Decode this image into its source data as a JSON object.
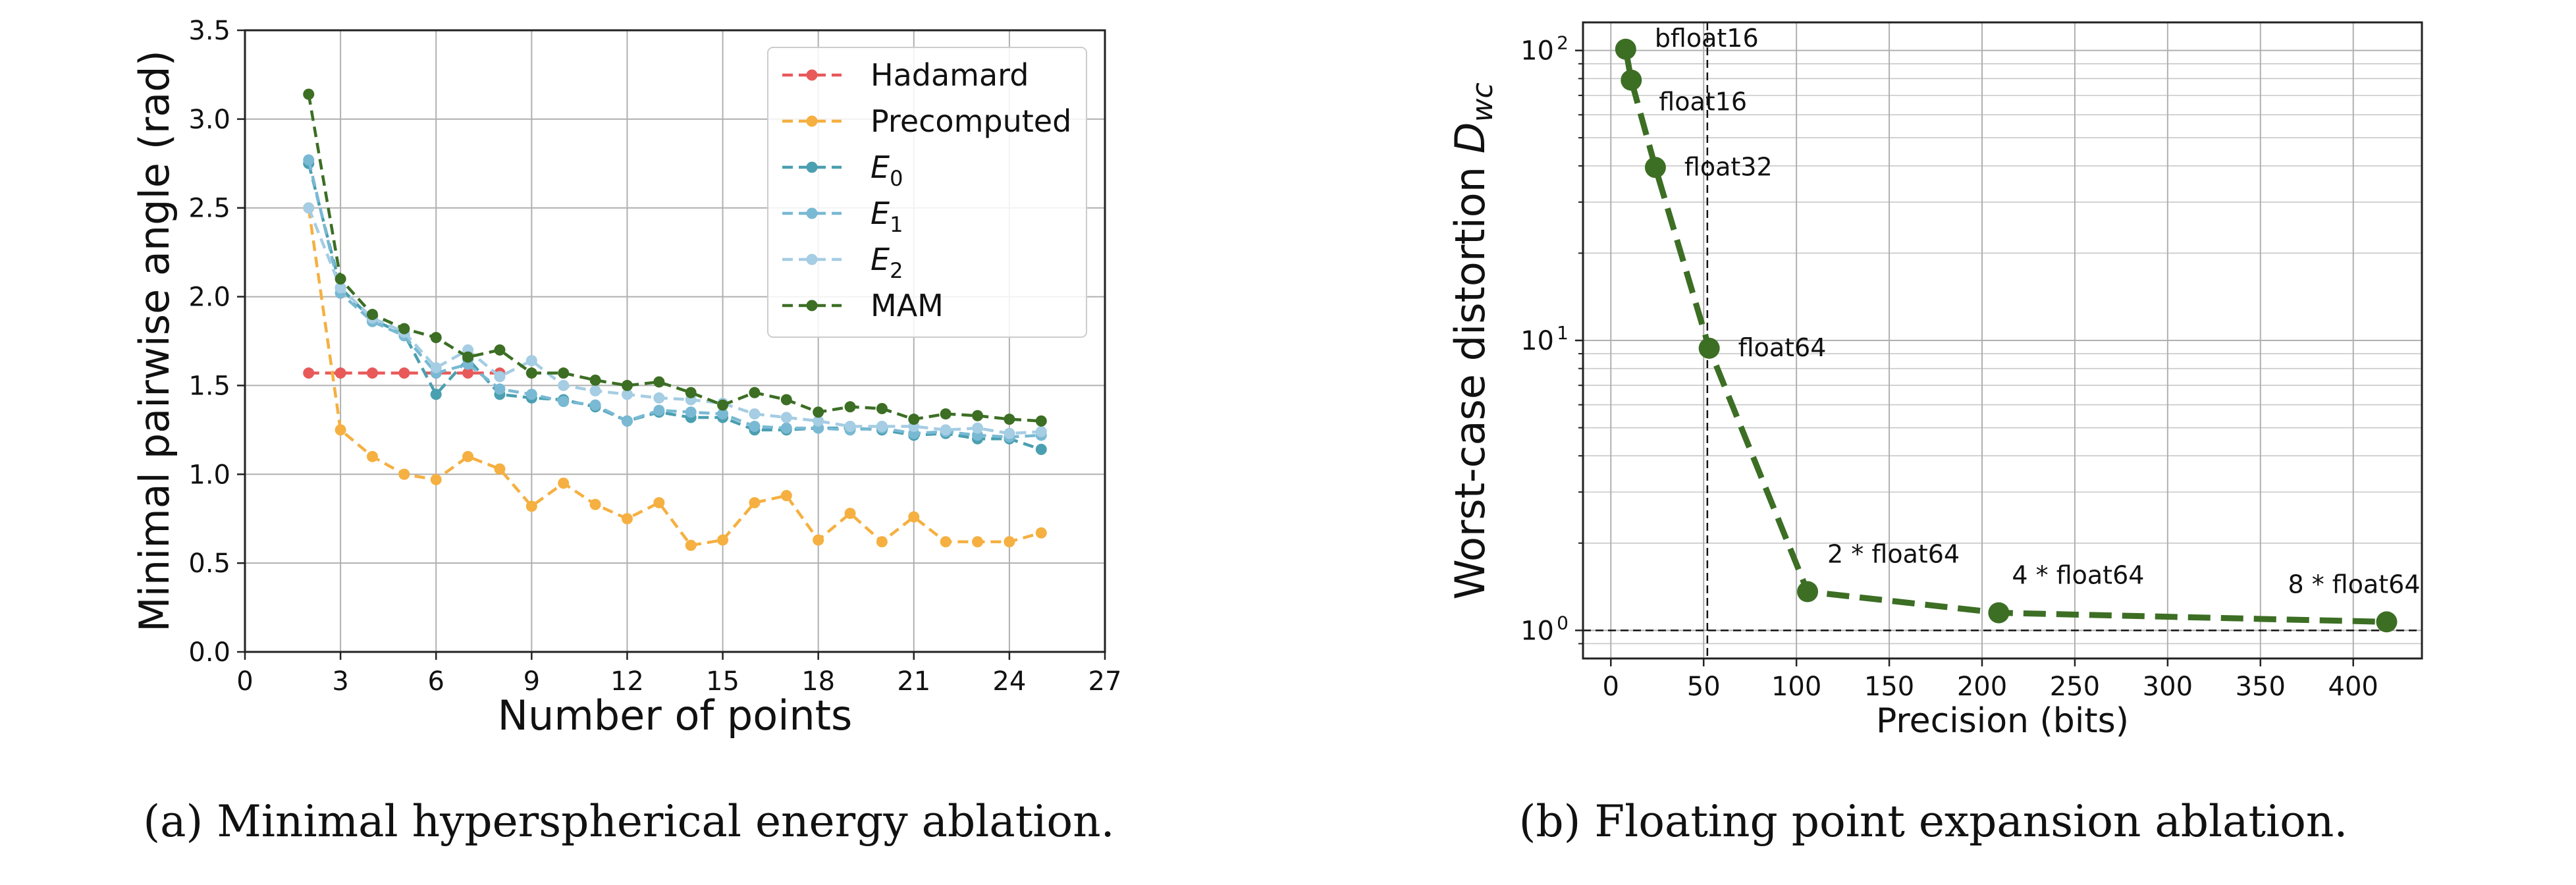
{
  "chart_data": [
    {
      "type": "line",
      "caption": "(a) Minimal hyperspherical energy ablation.",
      "xlabel": "Number of points",
      "ylabel": "Minimal pairwise angle (rad)",
      "xlim": [
        0,
        27
      ],
      "ylim": [
        0.0,
        3.5
      ],
      "xticks": [
        0,
        3,
        6,
        9,
        12,
        15,
        18,
        21,
        24,
        27
      ],
      "yticks": [
        0.0,
        0.5,
        1.0,
        1.5,
        2.0,
        2.5,
        3.0,
        3.5
      ],
      "xtick_labels": [
        "0",
        "3",
        "6",
        "9",
        "12",
        "15",
        "18",
        "21",
        "24",
        "27"
      ],
      "ytick_labels": [
        "0.0",
        "0.5",
        "1.0",
        "1.5",
        "2.0",
        "2.5",
        "3.0",
        "3.5"
      ],
      "grid": true,
      "legend_position": "top-right",
      "series": [
        {
          "name": "Hadamard",
          "name_main": "Hadamard",
          "name_sub": "",
          "color": "#e8595a",
          "x": [
            2,
            3,
            4,
            5,
            6,
            7,
            8
          ],
          "y": [
            1.57,
            1.57,
            1.57,
            1.57,
            1.57,
            1.57,
            1.57
          ]
        },
        {
          "name": "Precomputed",
          "name_main": "Precomputed",
          "name_sub": "",
          "color": "#f5b041",
          "x": [
            2,
            3,
            4,
            5,
            6,
            7,
            8,
            9,
            10,
            11,
            12,
            13,
            14,
            15,
            16,
            17,
            18,
            19,
            20,
            21,
            22,
            23,
            24,
            25
          ],
          "y": [
            2.5,
            1.25,
            1.1,
            1.0,
            0.97,
            1.1,
            1.03,
            0.82,
            0.95,
            0.83,
            0.75,
            0.84,
            0.6,
            0.63,
            0.84,
            0.88,
            0.63,
            0.78,
            0.62,
            0.76,
            0.62,
            0.62,
            0.62,
            0.67
          ]
        },
        {
          "name": "E_0",
          "name_main": "E",
          "name_sub": "0",
          "color": "#4a9fb0",
          "x": [
            2,
            3,
            4,
            5,
            6,
            7,
            8,
            9,
            10,
            11,
            12,
            13,
            14,
            15,
            16,
            17,
            18,
            19,
            20,
            21,
            22,
            23,
            24,
            25
          ],
          "y": [
            2.75,
            2.05,
            1.87,
            1.79,
            1.45,
            1.65,
            1.45,
            1.43,
            1.42,
            1.38,
            1.3,
            1.35,
            1.32,
            1.32,
            1.25,
            1.25,
            1.26,
            1.26,
            1.25,
            1.22,
            1.23,
            1.2,
            1.2,
            1.14
          ]
        },
        {
          "name": "E_1",
          "name_main": "E",
          "name_sub": "1",
          "color": "#79b9d3",
          "x": [
            2,
            3,
            4,
            5,
            6,
            7,
            8,
            9,
            10,
            11,
            12,
            13,
            14,
            15,
            16,
            17,
            18,
            19,
            20,
            21,
            22,
            23,
            24,
            25
          ],
          "y": [
            2.77,
            2.02,
            1.86,
            1.78,
            1.57,
            1.62,
            1.48,
            1.45,
            1.41,
            1.39,
            1.3,
            1.36,
            1.35,
            1.34,
            1.27,
            1.26,
            1.26,
            1.25,
            1.26,
            1.23,
            1.24,
            1.22,
            1.21,
            1.22
          ]
        },
        {
          "name": "E_2",
          "name_main": "E",
          "name_sub": "2",
          "color": "#a5cde3",
          "x": [
            2,
            3,
            4,
            5,
            6,
            7,
            8,
            9,
            10,
            11,
            12,
            13,
            14,
            15,
            16,
            17,
            18,
            19,
            20,
            21,
            22,
            23,
            24,
            25
          ],
          "y": [
            2.5,
            2.05,
            1.88,
            1.8,
            1.6,
            1.7,
            1.55,
            1.64,
            1.5,
            1.47,
            1.45,
            1.43,
            1.42,
            1.4,
            1.34,
            1.32,
            1.3,
            1.27,
            1.27,
            1.27,
            1.25,
            1.26,
            1.23,
            1.24
          ]
        },
        {
          "name": "MAM",
          "name_main": "MAM",
          "name_sub": "",
          "color": "#3c6e24",
          "x": [
            2,
            3,
            4,
            5,
            6,
            7,
            8,
            9,
            10,
            11,
            12,
            13,
            14,
            15,
            16,
            17,
            18,
            19,
            20,
            21,
            22,
            23,
            24,
            25
          ],
          "y": [
            3.14,
            2.1,
            1.9,
            1.82,
            1.77,
            1.66,
            1.7,
            1.57,
            1.57,
            1.53,
            1.5,
            1.52,
            1.46,
            1.39,
            1.46,
            1.42,
            1.35,
            1.38,
            1.37,
            1.31,
            1.34,
            1.33,
            1.31,
            1.3
          ]
        }
      ]
    },
    {
      "type": "line",
      "caption": "(b) Floating point expansion ablation.",
      "xlabel": "Precision (bits)",
      "ylabel": "Worst-case distortion",
      "ylabel_symbol": "D",
      "ylabel_symbol_sub": "wc",
      "xlim": [
        -15,
        437
      ],
      "ylim": [
        0.8,
        125
      ],
      "yscale": "log",
      "xticks": [
        0,
        50,
        100,
        150,
        200,
        250,
        300,
        350,
        400
      ],
      "xtick_labels": [
        "0",
        "50",
        "100",
        "150",
        "200",
        "250",
        "300",
        "350",
        "400"
      ],
      "yticks": [
        1,
        10,
        100
      ],
      "ytick_base": "10",
      "ytick_exponents": [
        "0",
        "1",
        "2"
      ],
      "grid": true,
      "reference_lines": {
        "x": 52,
        "y": 1
      },
      "series": [
        {
          "name": "",
          "color": "#3c6e24",
          "x": [
            8,
            11,
            24,
            53,
            106,
            209,
            418
          ],
          "y": [
            101,
            79,
            39.5,
            9.4,
            1.36,
            1.15,
            1.07
          ],
          "labels": [
            "bfloat16",
            "float16",
            "float32",
            "float64",
            "2 * float64",
            "4 * float64",
            "8 * float64"
          ]
        }
      ]
    }
  ]
}
